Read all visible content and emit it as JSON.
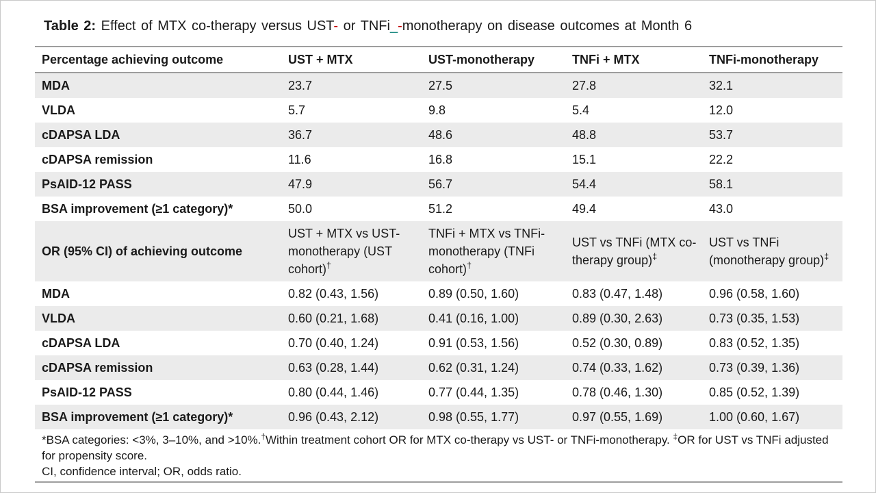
{
  "title": {
    "label": "Table 2:",
    "seg1": " Effect of MTX co-therapy versus UST",
    "red1": "-",
    "seg2": " or TNFi",
    "teal": "_",
    "red2": "-",
    "seg3": "monotherapy on disease outcomes at Month 6"
  },
  "colors": {
    "accent_red": "#C00000",
    "accent_teal": "#1E8A82",
    "row_stripe": "#EBEBEB",
    "rule": "#9E9E9E"
  },
  "table": {
    "columns": [
      "Percentage achieving outcome",
      "UST + MTX",
      "UST-monotherapy",
      "TNFi + MTX",
      "TNFi-monotherapy"
    ],
    "pct_rows": [
      {
        "label": "MDA",
        "values": [
          "23.7",
          "27.5",
          "27.8",
          "32.1"
        ]
      },
      {
        "label": "VLDA",
        "values": [
          "5.7",
          "9.8",
          "5.4",
          "12.0"
        ]
      },
      {
        "label": "cDAPSA LDA",
        "values": [
          "36.7",
          "48.6",
          "48.8",
          "53.7"
        ]
      },
      {
        "label": "cDAPSA remission",
        "values": [
          "11.6",
          "16.8",
          "15.1",
          "22.2"
        ]
      },
      {
        "label": "PsAID-12 PASS",
        "values": [
          "47.9",
          "56.7",
          "54.4",
          "58.1"
        ]
      },
      {
        "label": "BSA improvement (≥1 category)*",
        "values": [
          "50.0",
          "51.2",
          "49.4",
          "43.0"
        ]
      }
    ],
    "or_header": {
      "label": "OR (95% CI) of achieving outcome",
      "cols": [
        {
          "text": "UST + MTX vs UST-monotherapy (UST cohort)",
          "sup": "†"
        },
        {
          "text": "TNFi + MTX vs TNFi-monotherapy (TNFi cohort)",
          "sup": "†"
        },
        {
          "text": "UST vs TNFi (MTX co-therapy group)",
          "sup": "‡"
        },
        {
          "text": "UST vs TNFi (monotherapy group)",
          "sup": "‡"
        }
      ]
    },
    "or_rows": [
      {
        "label": "MDA",
        "values": [
          "0.82 (0.43, 1.56)",
          "0.89 (0.50, 1.60)",
          "0.83 (0.47, 1.48)",
          "0.96 (0.58, 1.60)"
        ]
      },
      {
        "label": "VLDA",
        "values": [
          "0.60 (0.21, 1.68)",
          "0.41 (0.16, 1.00)",
          "0.89 (0.30, 2.63)",
          "0.73 (0.35, 1.53)"
        ]
      },
      {
        "label": "cDAPSA LDA",
        "values": [
          "0.70 (0.40, 1.24)",
          "0.91 (0.53, 1.56)",
          "0.52 (0.30, 0.89)",
          "0.83 (0.52, 1.35)"
        ]
      },
      {
        "label": "cDAPSA remission",
        "values": [
          "0.63 (0.28, 1.44)",
          "0.62 (0.31, 1.24)",
          "0.74 (0.33, 1.62)",
          "0.73 (0.39, 1.36)"
        ]
      },
      {
        "label": "PsAID-12 PASS",
        "values": [
          "0.80 (0.44, 1.46)",
          "0.77 (0.44, 1.35)",
          "0.78 (0.46, 1.30)",
          "0.85 (0.52, 1.39)"
        ]
      },
      {
        "label": "BSA improvement (≥1 category)*",
        "values": [
          "0.96 (0.43, 2.12)",
          "0.98 (0.55, 1.77)",
          "0.97 (0.55, 1.69)",
          "1.00 (0.60, 1.67)"
        ]
      }
    ]
  },
  "footnotes": {
    "line1": {
      "p1": "*BSA categories: <3%, 3–10%, and >10%.",
      "s1": "†",
      "p2": "Within treatment cohort OR for MTX co-therapy vs UST- or TNFi-monotherapy. ",
      "s2": "‡",
      "p3": "OR for UST vs TNFi adjusted for propensity score."
    },
    "line2": "CI, confidence interval; OR, odds ratio."
  }
}
